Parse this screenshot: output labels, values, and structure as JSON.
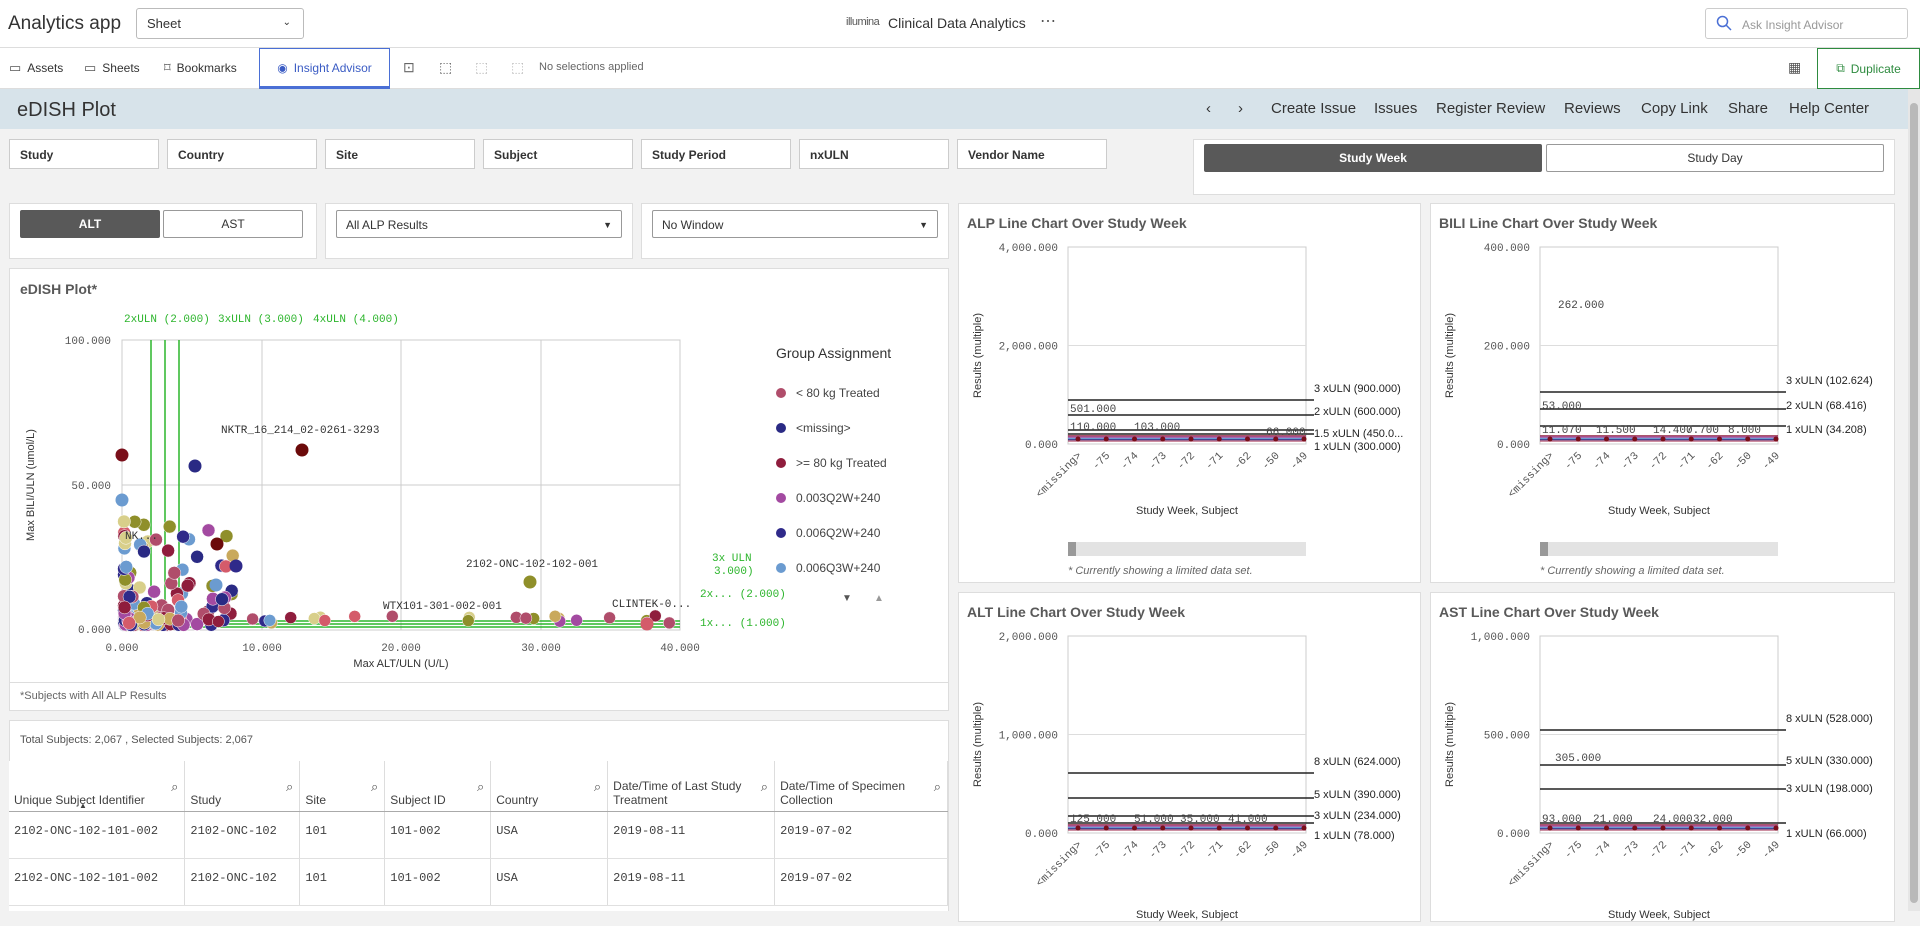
{
  "app": {
    "name": "Analytics app",
    "sheet_select": "Sheet",
    "brand": "illumina",
    "title": "Clinical Data Analytics",
    "more": "⋯",
    "search_placeholder": "Ask Insight Advisor"
  },
  "toolbar": {
    "assets": "Assets",
    "sheets": "Sheets",
    "bookmarks": "Bookmarks",
    "insight": "Insight Advisor",
    "no_selections": "No selections applied",
    "duplicate": "Duplicate"
  },
  "sheet": {
    "title": "eDISH Plot",
    "nav_prev": "‹",
    "nav_next": "›",
    "links": [
      "Create Issue",
      "Issues",
      "Register Review",
      "Reviews",
      "Copy Link",
      "Share",
      "Help Center"
    ]
  },
  "filters": [
    "Study",
    "Country",
    "Site",
    "Subject",
    "Study Period",
    "nxULN",
    "Vendor Name"
  ],
  "period_toggle": {
    "week": "Study Week",
    "day": "Study Day"
  },
  "enzyme_toggle": {
    "alt": "ALT",
    "ast": "AST"
  },
  "dropdowns": {
    "alp": "All ALP Results",
    "window": "No Window"
  },
  "edish": {
    "title": "eDISH Plot*",
    "footnote": "*Subjects with All ALP Results",
    "legend_title": "Group Assignment",
    "legend": [
      {
        "label": "< 80 kg Treated",
        "color": "#b04d6b"
      },
      {
        "label": "<missing>",
        "color": "#2a2a84"
      },
      {
        "label": ">= 80 kg Treated",
        "color": "#8f1d3d"
      },
      {
        "label": "0.003Q2W+240",
        "color": "#a34aa1"
      },
      {
        "label": "0.006Q2W+240",
        "color": "#2f2a8a"
      },
      {
        "label": "0.006Q3W+240",
        "color": "#6b9bd0"
      }
    ],
    "top_refs": [
      "2xULN (2.000)",
      "3xULN (3.000)",
      "4xULN (4.000)"
    ],
    "right_refs": [
      "3x ULN",
      "3.000)",
      "2x... (2.000)",
      "1x... (1.000)"
    ],
    "annotations": [
      "NKTR_16_214_02-0261-3293",
      "NK...",
      "2102-ONC-102-102-001",
      "WTX101-301-002-001",
      "CLINTEK-0..."
    ],
    "xlabel": "Max ALT/ULN (U/L)",
    "ylabel": "Max BILI/ULN (umol/L)",
    "x_ticks": [
      "0.000",
      "10.000",
      "20.000",
      "30.000",
      "40.000"
    ],
    "y_ticks": [
      "100.000",
      "50.000",
      "0.000"
    ]
  },
  "total_subjects": "Total Subjects: 2,067 , Selected Subjects: 2,067",
  "table": {
    "headers": [
      "Unique Subject Identifier",
      "Study",
      "Site",
      "Subject ID",
      "Country",
      "Date/Time of Last Study Treatment",
      "Date/Time of Specimen Collection"
    ],
    "rows": [
      [
        "2102-ONC-102-101-002",
        "2102-ONC-102",
        "101",
        "101-002",
        "USA",
        "2019-08-11",
        "2019-07-02"
      ],
      [
        "2102-ONC-102-101-002",
        "2102-ONC-102",
        "101",
        "101-002",
        "USA",
        "2019-08-11",
        "2019-07-02"
      ]
    ]
  },
  "line_charts": {
    "x_cats": [
      "<missing>",
      "-75",
      "-74",
      "-73",
      "-72",
      "-71",
      "-62",
      "-50",
      "-49"
    ],
    "ylabel": "Results (multiple)",
    "xlabel": "Study Week, Subject",
    "limited_note": "* Currently showing a limited data set.",
    "alp": {
      "title": "ALP Line Chart Over Study Week",
      "y_ticks": [
        "4,000.000",
        "2,000.000",
        "0.000"
      ],
      "refs": [
        "3 xULN (900.000)",
        "2 xULN (600.000)",
        "1.5 xULN (450.0...",
        "1 xULN (300.000)"
      ],
      "labels": [
        "501.000",
        "110.000",
        "103.000",
        "66.000"
      ]
    },
    "bili": {
      "title": "BILI Line Chart Over Study Week",
      "y_ticks": [
        "400.000",
        "200.000",
        "0.000"
      ],
      "refs": [
        "3 xULN (102.624)",
        "2 xULN (68.416)",
        "1 xULN (34.208)"
      ],
      "labels": [
        "262.000",
        "53.000",
        "11.070",
        "11.500",
        "14.400",
        "7.700",
        "8.000"
      ]
    },
    "alt": {
      "title": "ALT Line Chart Over Study Week",
      "y_ticks": [
        "2,000.000",
        "1,000.000",
        "0.000"
      ],
      "refs": [
        "8 xULN (624.000)",
        "5 xULN (390.000)",
        "3 xULN (234.000)",
        "1 xULN (78.000)"
      ],
      "labels": [
        "125.000",
        "51.000",
        "35.000",
        "41.000"
      ]
    },
    "ast": {
      "title": "AST Line Chart Over Study Week",
      "y_ticks": [
        "1,000.000",
        "500.000",
        "0.000"
      ],
      "refs": [
        "8 xULN (528.000)",
        "5 xULN (330.000)",
        "3 xULN (198.000)",
        "1 xULN (66.000)"
      ],
      "labels": [
        "305.000",
        "93.000",
        "21.000",
        "24.000",
        "32.000"
      ]
    }
  }
}
